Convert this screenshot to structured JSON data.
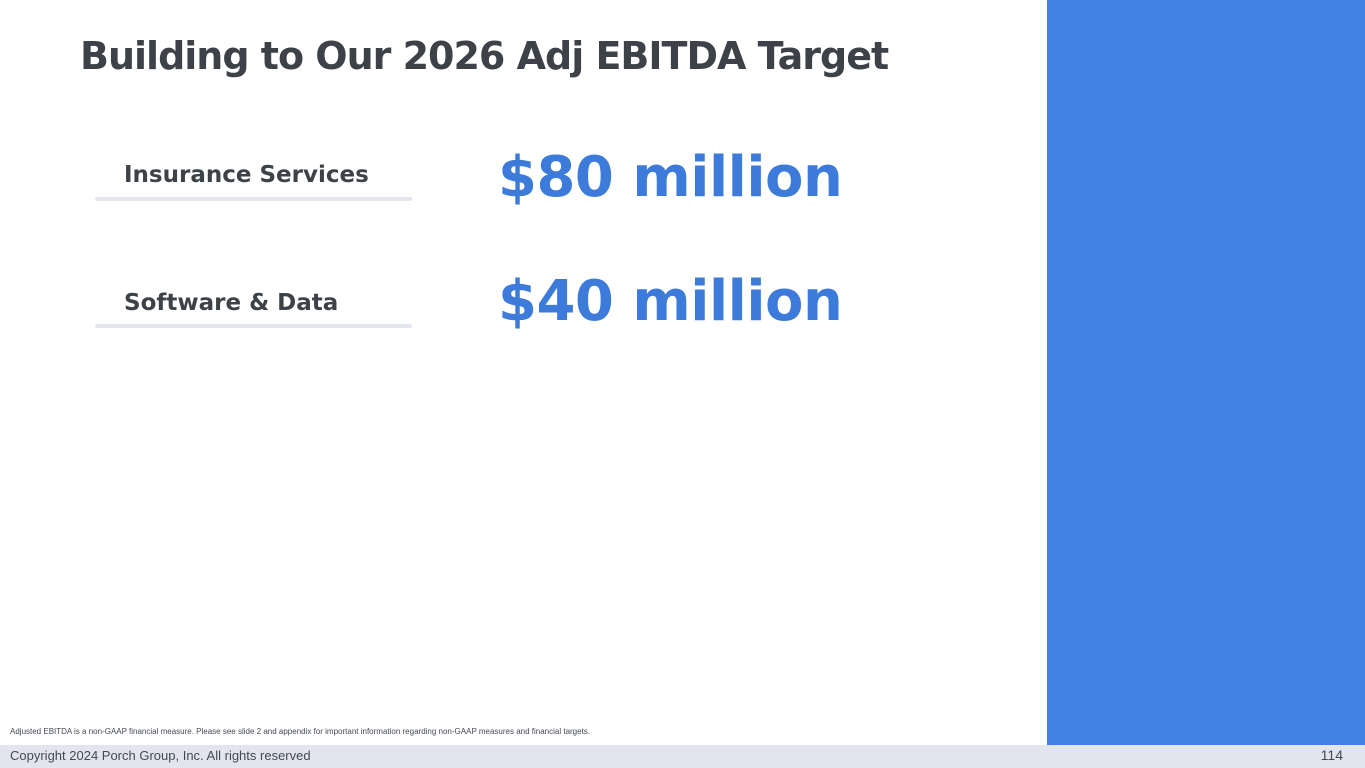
{
  "slide": {
    "title": "Building to Our 2026 Adj EBITDA Target",
    "segments": [
      {
        "label": "Insurance Services",
        "value": "$80 million"
      },
      {
        "label": "Software & Data",
        "value": "$40 million"
      }
    ],
    "footnote": "Adjusted EBITDA is a non-GAAP financial measure. Please see slide 2 and appendix for important information regarding non-GAAP measures and financial targets.",
    "footer": {
      "copyright": "Copyright 2024 Porch Group, Inc. All rights reserved",
      "page_number": "114"
    }
  },
  "colors": {
    "accent_blue": "#4181e2",
    "value_blue": "#3d7bdb",
    "heading_text": "#3c4248",
    "footer_bg": "#e2e5ee",
    "underline": "#e3e6ee"
  }
}
